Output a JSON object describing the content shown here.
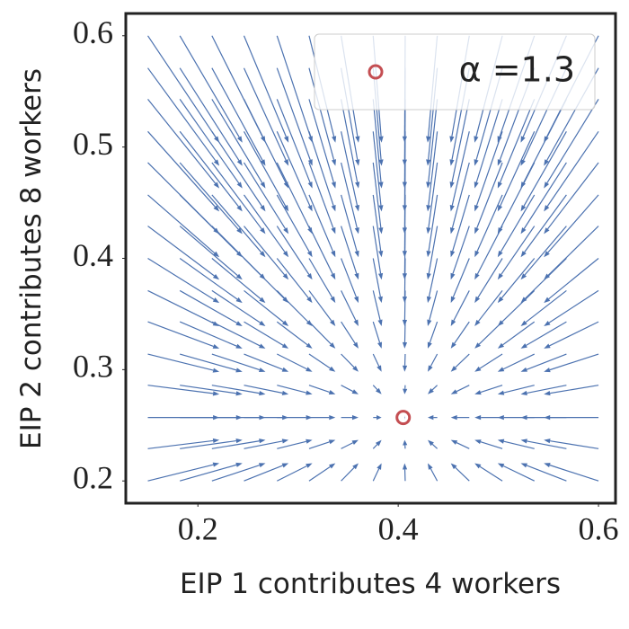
{
  "chart_data": {
    "type": "quiver",
    "xlabel": "EIP 1 contributes 4 workers",
    "ylabel": "EIP 2 contributes 8 workers",
    "x": [
      0.15,
      0.182,
      0.214,
      0.246,
      0.279,
      0.311,
      0.343,
      0.375,
      0.407,
      0.439,
      0.471,
      0.504,
      0.536,
      0.568,
      0.6
    ],
    "y": [
      0.2,
      0.229,
      0.257,
      0.286,
      0.314,
      0.343,
      0.371,
      0.4,
      0.429,
      0.457,
      0.486,
      0.514,
      0.543,
      0.571,
      0.6
    ],
    "u": [
      0.255,
      0.223,
      0.191,
      0.159,
      0.126,
      0.094,
      0.062,
      0.03,
      -0.002,
      -0.034,
      -0.066,
      -0.099,
      -0.131,
      -0.163,
      -0.195
    ],
    "v": [
      0.057,
      0.028,
      0,
      -0.029,
      -0.057,
      -0.086,
      -0.114,
      -0.143,
      -0.172,
      -0.2,
      -0.229,
      -0.257,
      -0.286,
      -0.314,
      -0.343
    ],
    "color": "#4c72b0",
    "points": {
      "name": "α =1.3",
      "x": [
        0.405
      ],
      "y": [
        0.257
      ],
      "color": "#c44e52"
    },
    "xlim": [
      0.128,
      0.617
    ],
    "ylim": [
      0.18,
      0.62
    ],
    "xticks": [
      0.2,
      0.4,
      0.6
    ],
    "yticks": [
      0.2,
      0.3,
      0.4,
      0.5,
      0.6
    ],
    "legend": "upper right"
  }
}
